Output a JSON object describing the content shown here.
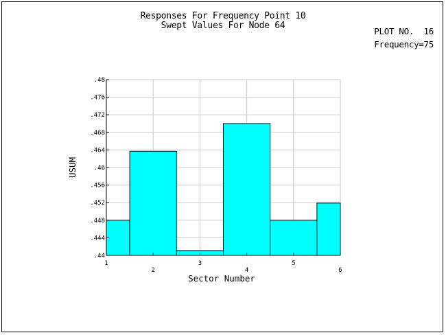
{
  "title_line_1": "Responses For Frequency Point 10",
  "title_line_2": "Swept Values For Node 64",
  "plot_number": "PLOT NO.  16",
  "frequency_label": "Frequency=75",
  "colors": {
    "bar_fill": "#00FFFF",
    "bar_stroke": "#000000",
    "grid": "#C8C8C8",
    "axis": "#000000"
  },
  "chart_data": {
    "type": "bar",
    "xlabel": "Sector Number",
    "ylabel": "USUM",
    "xlim": [
      1,
      6
    ],
    "ylim": [
      0.44,
      0.48
    ],
    "grid": true,
    "categories": [
      "1",
      "2",
      "3",
      "4",
      "5",
      "6"
    ],
    "values": [
      0.448,
      0.4637,
      0.4411,
      0.47,
      0.448,
      0.4519
    ],
    "x_ticks": [
      "1",
      "2",
      "3",
      "4",
      "5",
      "6"
    ],
    "y_ticks": [
      ".44",
      ".444",
      ".448",
      ".452",
      ".456",
      ".46",
      ".464",
      ".468",
      ".472",
      ".476",
      ".48"
    ],
    "y_tick_values": [
      0.44,
      0.444,
      0.448,
      0.452,
      0.456,
      0.46,
      0.464,
      0.468,
      0.472,
      0.476,
      0.48
    ]
  }
}
